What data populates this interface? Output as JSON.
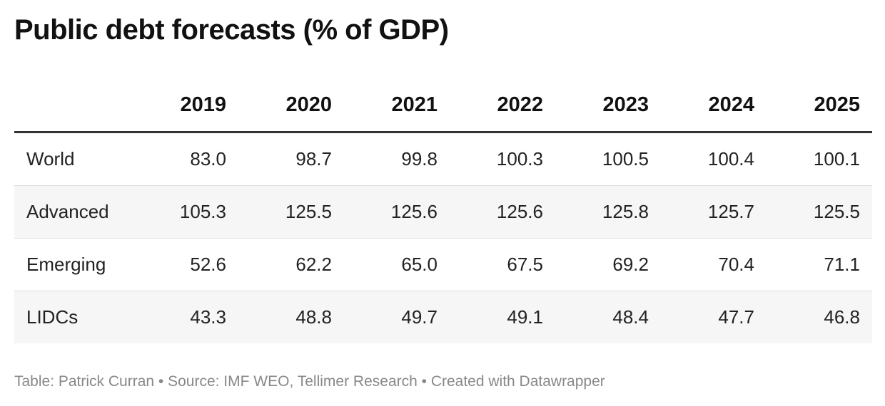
{
  "title": "Public debt forecasts (% of GDP)",
  "chart_data": {
    "type": "table",
    "title": "Public debt forecasts (% of GDP)",
    "columns": [
      "2019",
      "2020",
      "2021",
      "2022",
      "2023",
      "2024",
      "2025"
    ],
    "rows": [
      {
        "label": "World",
        "values": [
          "83.0",
          "98.7",
          "99.8",
          "100.3",
          "100.5",
          "100.4",
          "100.1"
        ]
      },
      {
        "label": "Advanced",
        "values": [
          "105.3",
          "125.5",
          "125.6",
          "125.6",
          "125.8",
          "125.7",
          "125.5"
        ]
      },
      {
        "label": "Emerging",
        "values": [
          "52.6",
          "62.2",
          "65.0",
          "67.5",
          "69.2",
          "70.4",
          "71.1"
        ]
      },
      {
        "label": "LIDCs",
        "values": [
          "43.3",
          "48.8",
          "49.7",
          "49.1",
          "48.4",
          "47.7",
          "46.8"
        ]
      }
    ]
  },
  "footer": {
    "text": "Table: Patrick Curran • Source: IMF WEO, Tellimer Research • Created with Datawrapper"
  },
  "colors": {
    "header_rule": "#333333",
    "row_divider": "#dddddd",
    "stripe": "#f6f6f6",
    "footer_text": "#888888"
  }
}
